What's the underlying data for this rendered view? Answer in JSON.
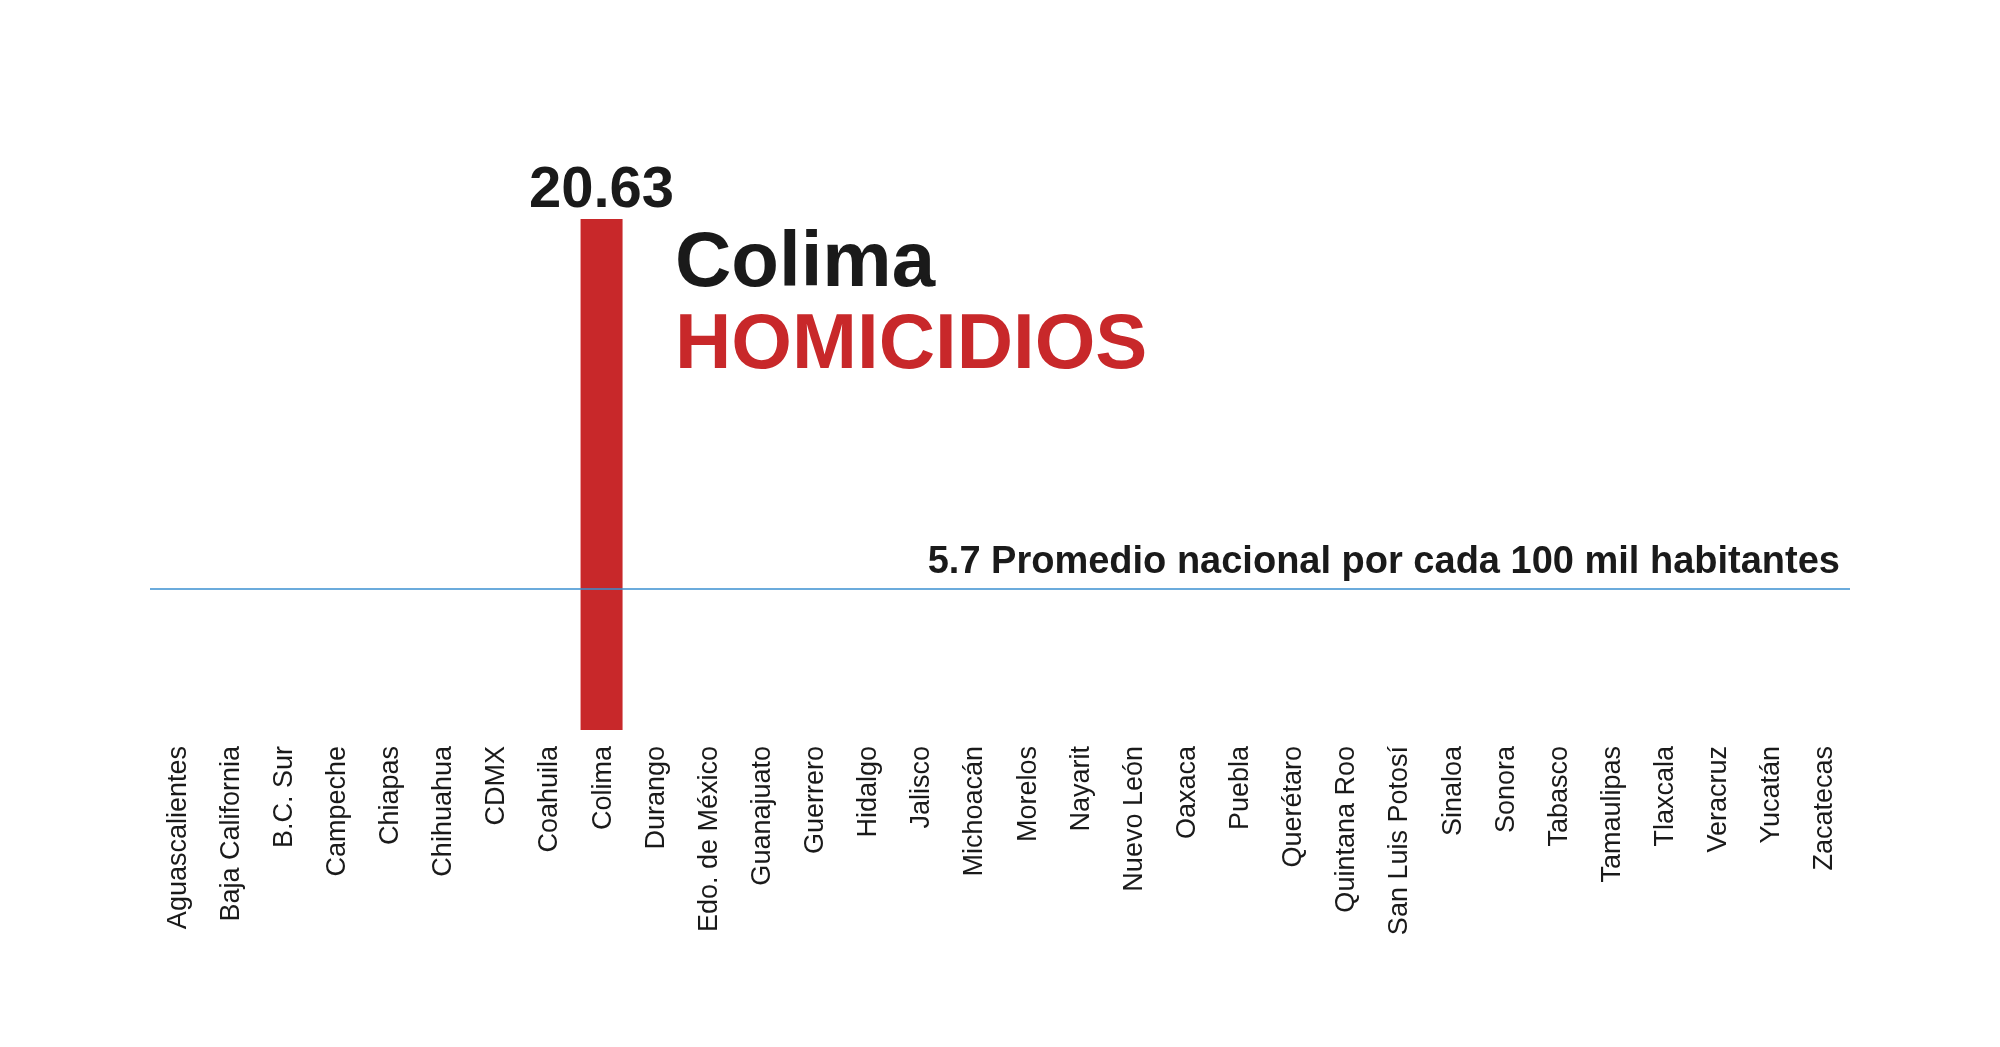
{
  "chart_data": {
    "type": "bar",
    "title": "Colima",
    "subtitle": "HOMICIDIOS",
    "categories": [
      "Aguascalientes",
      "Baja California",
      "B.C. Sur",
      "Campeche",
      "Chiapas",
      "Chihuahua",
      "CDMX",
      "Coahuila",
      "Colima",
      "Durango",
      "Edo. de México",
      "Guanajuato",
      "Guerrero",
      "Hidalgo",
      "Jalisco",
      "Michoacán",
      "Morelos",
      "Nayarit",
      "Nuevo León",
      "Oaxaca",
      "Puebla",
      "Querétaro",
      "Quintana Roo",
      "San Luis Potosí",
      "Sinaloa",
      "Sonora",
      "Tabasco",
      "Tamaulipas",
      "Tlaxcala",
      "Veracruz",
      "Yucatán",
      "Zacatecas"
    ],
    "values": [
      null,
      null,
      null,
      null,
      null,
      null,
      null,
      null,
      20.63,
      null,
      null,
      null,
      null,
      null,
      null,
      null,
      null,
      null,
      null,
      null,
      null,
      null,
      null,
      null,
      null,
      null,
      null,
      null,
      null,
      null,
      null,
      null
    ],
    "color": "#c8282a",
    "data_labels": true,
    "ref_lines": [
      {
        "axis": "y",
        "value": 5.7,
        "label": "5.7 Promedio nacional por cada 100 mil habitantes",
        "color": "#3a8fd0"
      }
    ]
  }
}
